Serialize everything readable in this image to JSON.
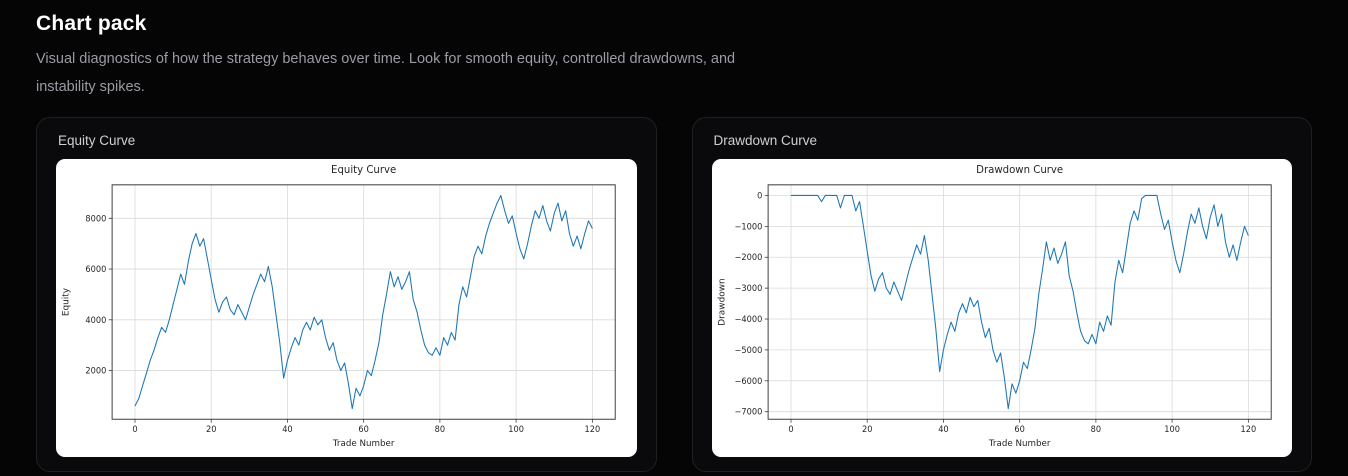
{
  "header": {
    "title": "Chart pack",
    "subtitle": "Visual diagnostics of how the strategy behaves over time. Look for smooth equity, controlled drawdowns, and instability spikes."
  },
  "cards": [
    {
      "label": "Equity Curve"
    },
    {
      "label": "Drawdown Curve"
    }
  ],
  "colors": {
    "line": "#1f77b4",
    "figure_background": "#ffffff",
    "card_background": "#0a0a0c",
    "page_background": "#050506"
  },
  "chart_data": [
    {
      "type": "line",
      "title": "Equity Curve",
      "xlabel": "Trade Number",
      "ylabel": "Equity",
      "x_start": 0,
      "x_step": 1,
      "xlim": [
        -6,
        126
      ],
      "ylim": [
        80,
        9320
      ],
      "xticks": [
        0,
        20,
        40,
        60,
        80,
        100,
        120
      ],
      "yticks": [
        2000,
        4000,
        6000,
        8000
      ],
      "grid": true,
      "legend": "none",
      "line_color": "#1f77b4",
      "values": [
        600,
        900,
        1400,
        1900,
        2400,
        2800,
        3300,
        3700,
        3500,
        4000,
        4600,
        5200,
        5800,
        5400,
        6300,
        7000,
        7400,
        6900,
        7200,
        6400,
        5600,
        4800,
        4300,
        4700,
        4900,
        4400,
        4200,
        4600,
        4300,
        4000,
        4500,
        5000,
        5400,
        5800,
        5500,
        6100,
        5300,
        4200,
        3100,
        1700,
        2400,
        2900,
        3300,
        3000,
        3600,
        3900,
        3600,
        4100,
        3800,
        4000,
        3300,
        2800,
        3100,
        2400,
        2000,
        2300,
        1500,
        500,
        1300,
        1000,
        1400,
        2000,
        1800,
        2400,
        3100,
        4200,
        5000,
        5900,
        5300,
        5700,
        5200,
        5500,
        5900,
        4800,
        4300,
        3600,
        3000,
        2700,
        2600,
        2900,
        2600,
        3300,
        3000,
        3500,
        3200,
        4600,
        5300,
        4900,
        5700,
        6500,
        6900,
        6600,
        7300,
        7800,
        8200,
        8600,
        8900,
        8300,
        7800,
        8100,
        7400,
        6800,
        6400,
        7000,
        7700,
        8300,
        8000,
        8500,
        7900,
        7500,
        8200,
        8600,
        7900,
        8300,
        7400,
        6900,
        7300,
        6800,
        7400,
        7900,
        7600
      ]
    },
    {
      "type": "line",
      "title": "Drawdown Curve",
      "xlabel": "Trade Number",
      "ylabel": "Drawdown",
      "x_start": 0,
      "x_step": 1,
      "xlim": [
        -6,
        126
      ],
      "ylim": [
        -7245,
        345
      ],
      "xticks": [
        0,
        20,
        40,
        60,
        80,
        100,
        120
      ],
      "yticks": [
        0,
        -1000,
        -2000,
        -3000,
        -4000,
        -5000,
        -6000,
        -7000
      ],
      "grid": true,
      "legend": "none",
      "line_color": "#1f77b4",
      "values": [
        0,
        0,
        0,
        0,
        0,
        0,
        0,
        0,
        -200,
        0,
        0,
        0,
        0,
        -400,
        0,
        0,
        0,
        -500,
        -200,
        -1000,
        -1800,
        -2600,
        -3100,
        -2700,
        -2500,
        -3000,
        -3200,
        -2800,
        -3100,
        -3400,
        -2900,
        -2400,
        -2000,
        -1600,
        -1900,
        -1300,
        -2100,
        -3200,
        -4300,
        -5700,
        -5000,
        -4500,
        -4100,
        -4400,
        -3800,
        -3500,
        -3800,
        -3300,
        -3600,
        -3400,
        -4100,
        -4600,
        -4300,
        -5000,
        -5400,
        -5100,
        -5900,
        -6900,
        -6100,
        -6400,
        -6000,
        -5400,
        -5600,
        -5000,
        -4300,
        -3200,
        -2400,
        -1500,
        -2100,
        -1700,
        -2200,
        -1900,
        -1500,
        -2600,
        -3100,
        -3800,
        -4400,
        -4700,
        -4800,
        -4500,
        -4800,
        -4100,
        -4400,
        -3900,
        -4200,
        -2800,
        -2100,
        -2500,
        -1700,
        -900,
        -500,
        -800,
        -100,
        0,
        0,
        0,
        0,
        -600,
        -1100,
        -800,
        -1500,
        -2100,
        -2500,
        -1900,
        -1200,
        -600,
        -900,
        -400,
        -1000,
        -1400,
        -700,
        -300,
        -1000,
        -600,
        -1500,
        -2000,
        -1600,
        -2100,
        -1500,
        -1000,
        -1300
      ]
    }
  ]
}
